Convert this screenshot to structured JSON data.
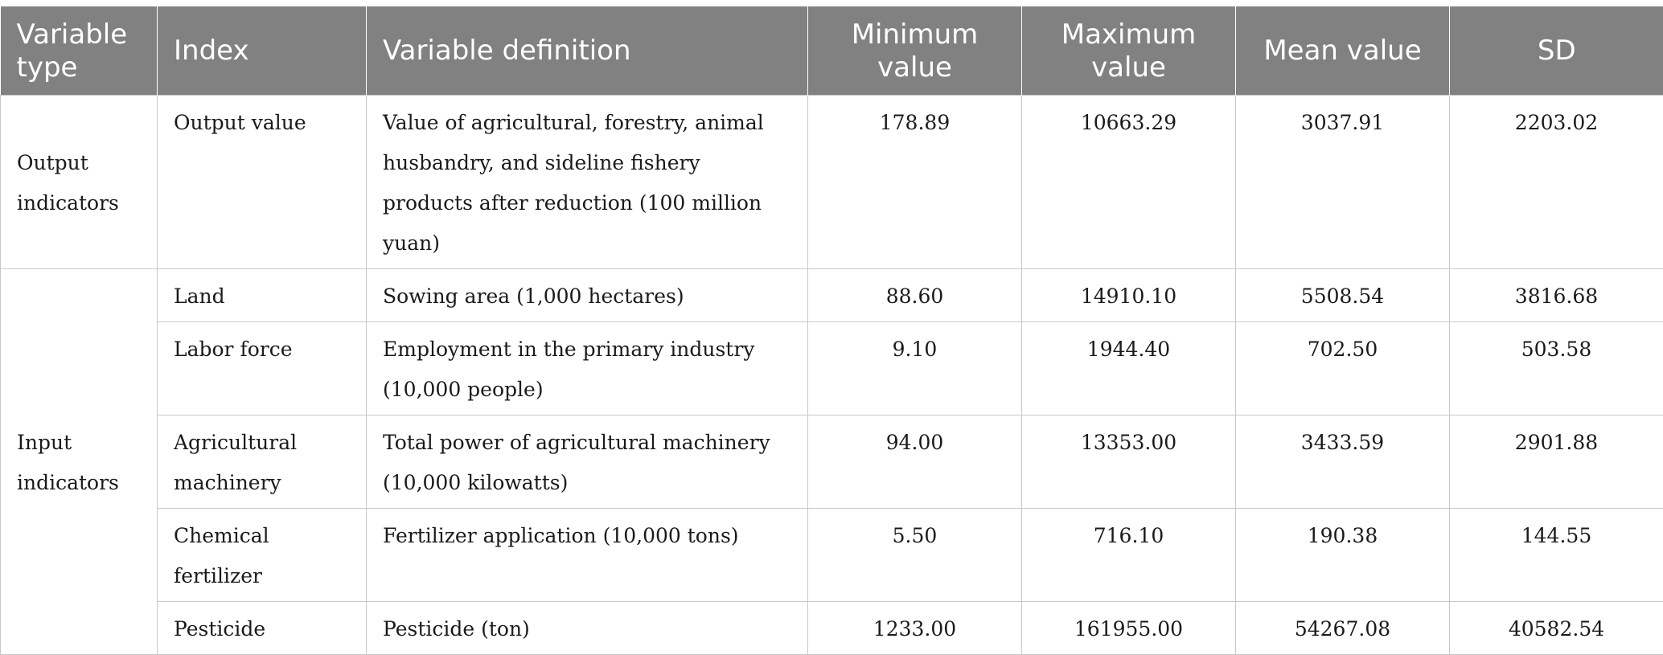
{
  "table": {
    "headers": [
      "Variable type",
      "Index",
      "Variable definition",
      "Minimum value",
      "Maximum value",
      "Mean value",
      "SD"
    ],
    "groups": [
      {
        "type": "Output indicators",
        "rows": [
          {
            "index": "Output value",
            "definition": "Value of agricultural, forestry, animal husbandry, and sideline fishery products after reduction (100 million yuan)",
            "min": "178.89",
            "max": "10663.29",
            "mean": "3037.91",
            "sd": "2203.02"
          }
        ]
      },
      {
        "type": "Input indicators",
        "rows": [
          {
            "index": "Land",
            "definition": "Sowing area (1,000 hectares)",
            "min": "88.60",
            "max": "14910.10",
            "mean": "5508.54",
            "sd": "3816.68"
          },
          {
            "index": "Labor force",
            "definition": "Employment in the primary industry (10,000 people)",
            "min": "9.10",
            "max": "1944.40",
            "mean": "702.50",
            "sd": "503.58"
          },
          {
            "index": "Agricultural machinery",
            "definition": "Total power of agricultural machinery (10,000 kilowatts)",
            "min": "94.00",
            "max": "13353.00",
            "mean": "3433.59",
            "sd": "2901.88"
          },
          {
            "index": "Chemical fertilizer",
            "definition": "Fertilizer application (10,000 tons)",
            "min": "5.50",
            "max": "716.10",
            "mean": "190.38",
            "sd": "144.55"
          },
          {
            "index": "Pesticide",
            "definition": "Pesticide (ton)",
            "min": "1233.00",
            "max": "161955.00",
            "mean": "54267.08",
            "sd": "40582.54"
          }
        ]
      }
    ]
  }
}
